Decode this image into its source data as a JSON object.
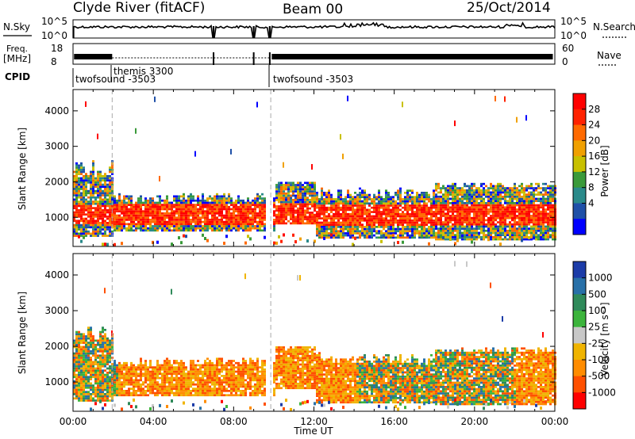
{
  "header": {
    "station": "Clyde River (fitACF)",
    "beam": "Beam 00",
    "date": "25/Oct/2014"
  },
  "top_panels": {
    "nsky_label": "N.Sky",
    "nsky_ticks": [
      "10^5",
      "10^0"
    ],
    "nsearch_label": "N.Search",
    "nsearch_ticks": [
      "10^5",
      "10^0"
    ],
    "freq_label": "Freq.",
    "freq_unit": "[MHz]",
    "freq_ticks": [
      "18",
      "8"
    ],
    "nave_label": "Nave",
    "nave_ticks": [
      "60",
      "0"
    ],
    "cpid_label": "CPID",
    "cpid_segments": [
      {
        "name": "twofsound -3503",
        "start_hour": 0.0
      },
      {
        "name": "themis 3300",
        "start_hour": 1.95
      },
      {
        "name": "twofsound -3503",
        "start_hour": 9.85
      }
    ]
  },
  "chart_data": [
    {
      "type": "heatmap",
      "name": "power-panel",
      "ylabel": "Slant Range [km]",
      "ylim": [
        180,
        4600
      ],
      "xlim": [
        0,
        24
      ],
      "yticks": [
        1000,
        2000,
        3000,
        4000
      ],
      "colorbar": {
        "label": "Power [dB]",
        "ticks": [
          "28",
          "24",
          "20",
          "16",
          "12",
          "8",
          "4"
        ],
        "colors": [
          "#ff0000",
          "#ff2200",
          "#ff6a00",
          "#f0a000",
          "#c8c000",
          "#3a9a3a",
          "#2a8a8a",
          "#1f50a8",
          "#0000ff"
        ]
      }
    },
    {
      "type": "heatmap",
      "name": "velocity-panel",
      "xlabel": "Time UT",
      "ylabel": "Slant Range [km]",
      "ylim": [
        180,
        4600
      ],
      "xlim": [
        0,
        24
      ],
      "xticks": [
        "00:00",
        "04:00",
        "08:00",
        "12:00",
        "16:00",
        "20:00",
        "00:00"
      ],
      "yticks": [
        1000,
        2000,
        3000,
        4000
      ],
      "colorbar": {
        "label": "Velocity [m s⁻¹]",
        "ticks": [
          "1000",
          "500",
          "100",
          "25",
          "-25",
          "-100",
          "-500",
          "-1000"
        ],
        "colors": [
          "#1c3ca8",
          "#2870a8",
          "#2f8a5a",
          "#3cb43c",
          "#c8c8c8",
          "#f0b400",
          "#ff8c00",
          "#ff5000",
          "#ff0000"
        ]
      }
    }
  ]
}
